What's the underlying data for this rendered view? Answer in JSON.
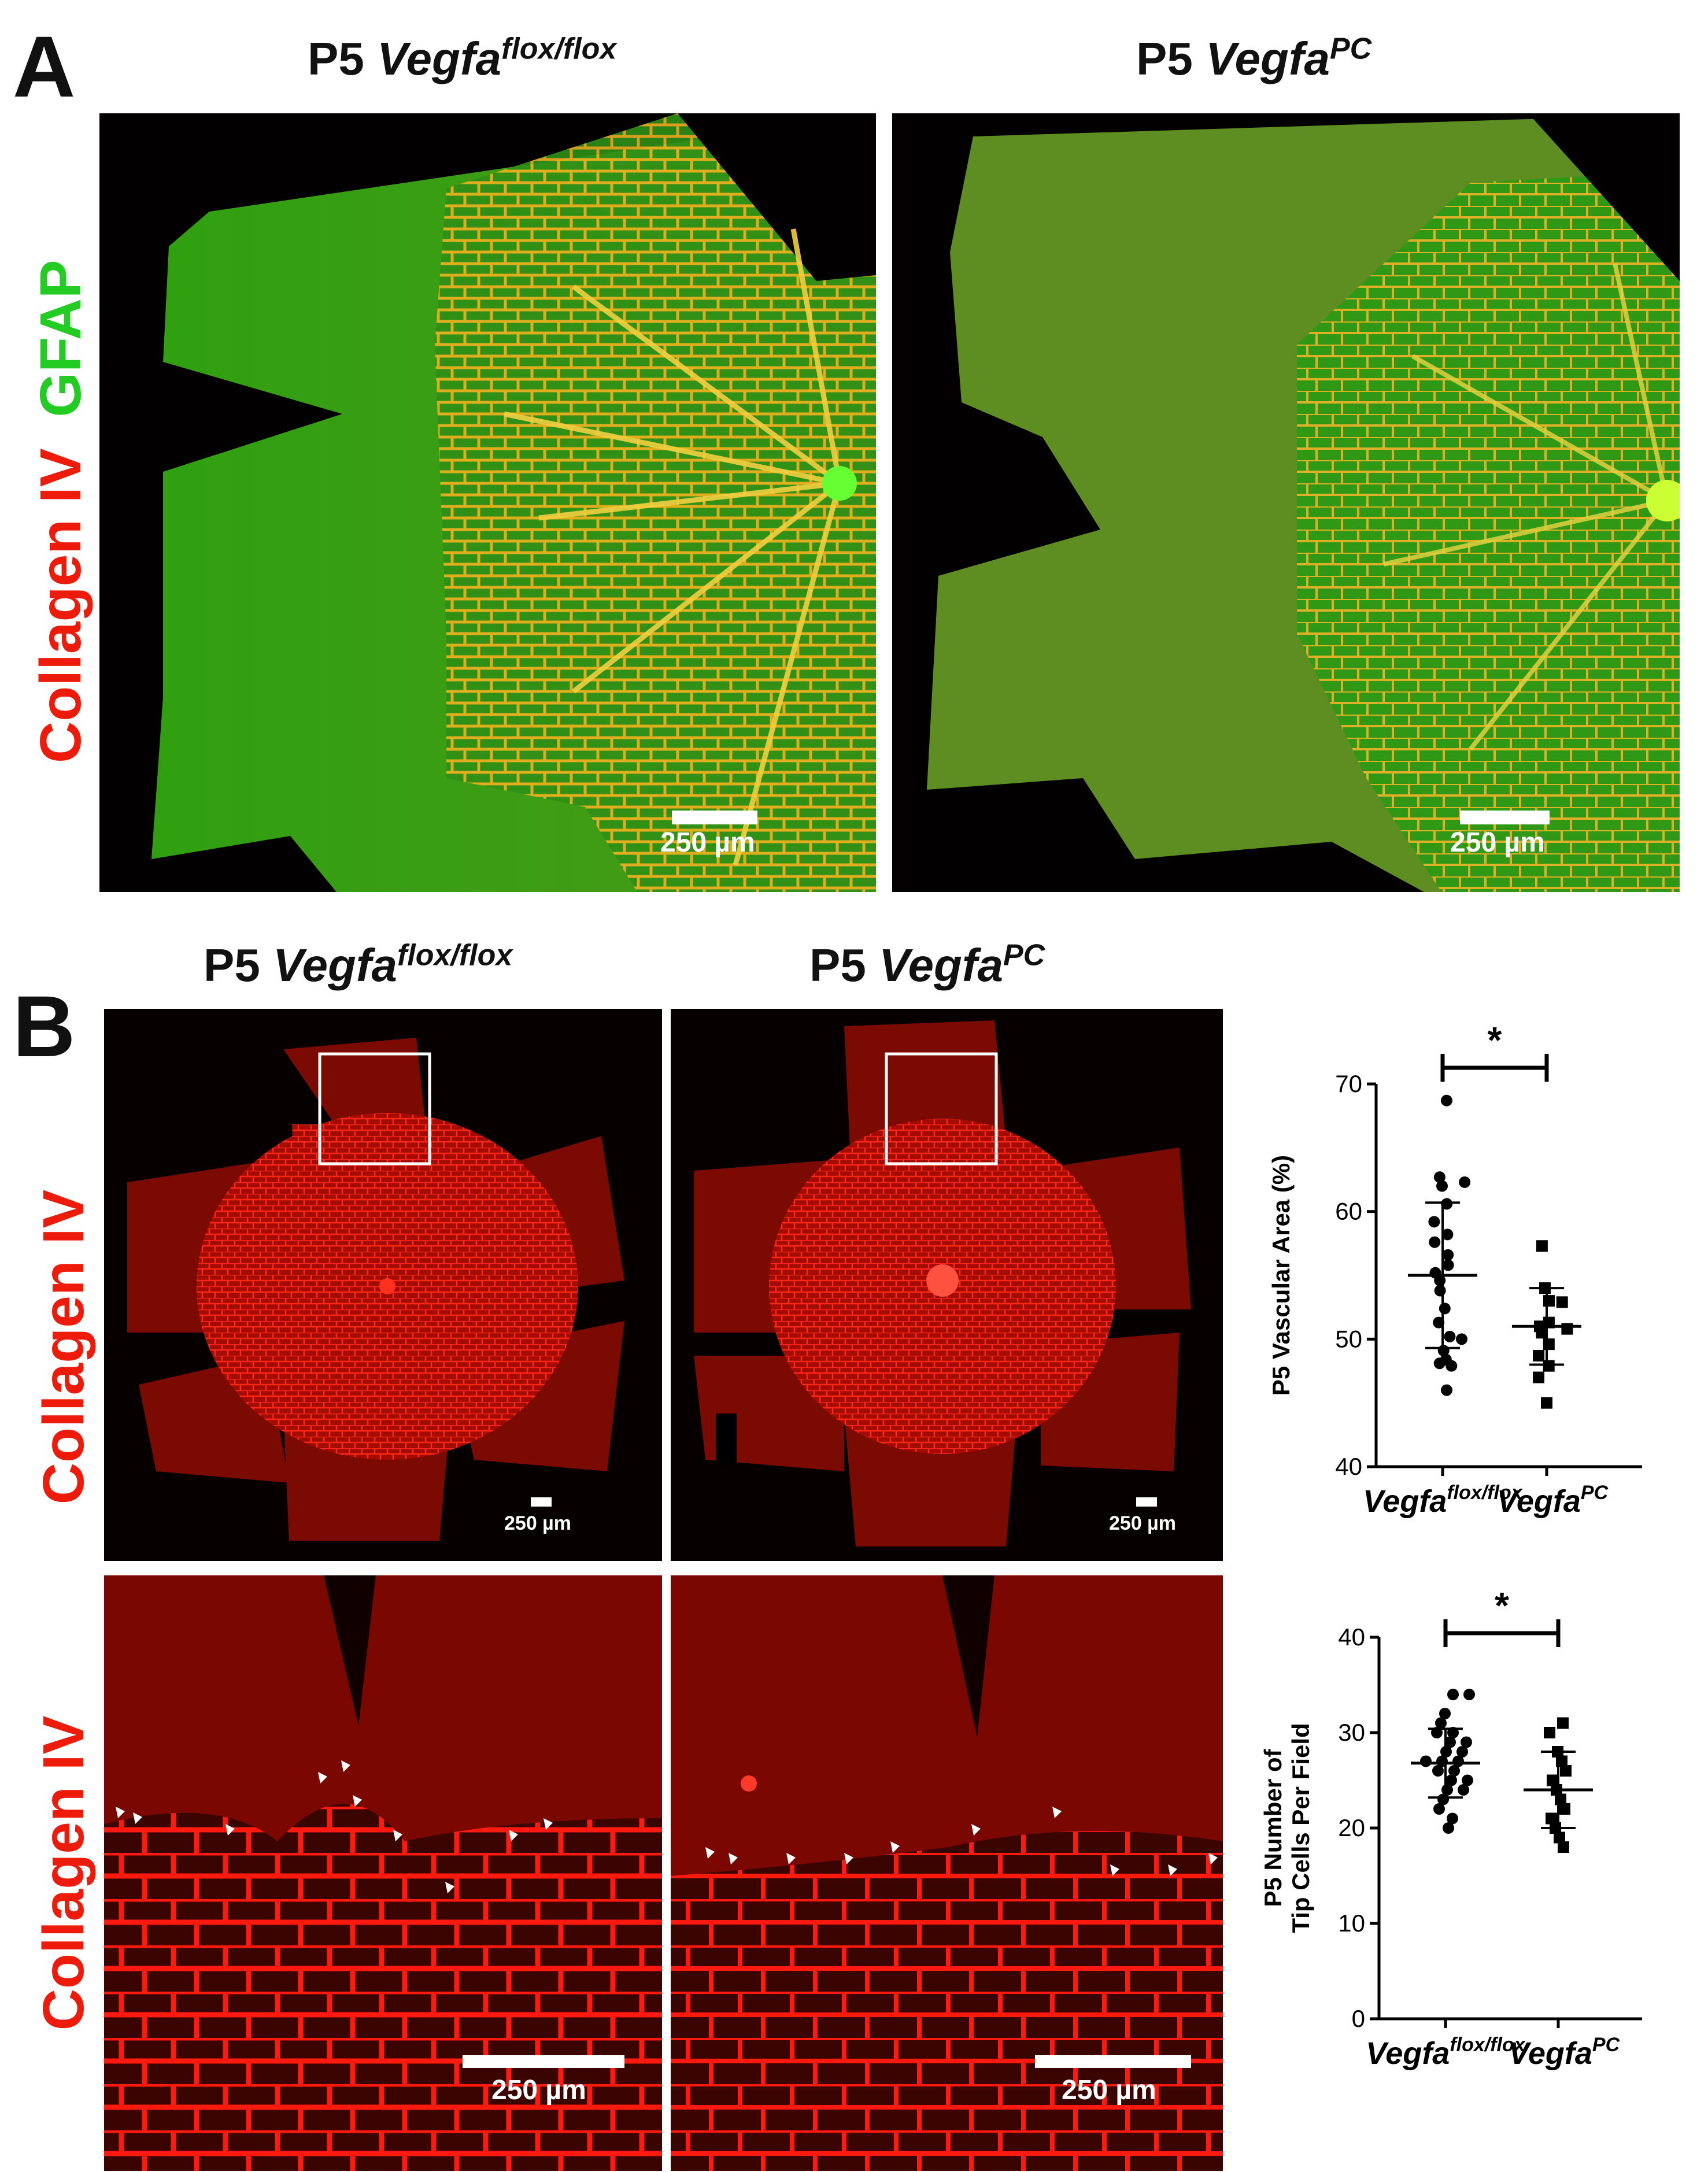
{
  "panel_a": {
    "letter": "A",
    "titles": [
      {
        "prefix": "P5 ",
        "gene": "Vegfa",
        "sup": "flox/flox"
      },
      {
        "prefix": "P5 ",
        "gene": "Vegfa",
        "sup": "PC"
      }
    ],
    "side_label_red": "Collagen IV",
    "side_label_green": "GFAP",
    "scalebar": "250 µm",
    "colors": {
      "green": "#22cc22",
      "red": "#ff2a1a",
      "yellow": "#e8d030"
    }
  },
  "panel_b": {
    "letter": "B",
    "titles": [
      {
        "prefix": "P5 ",
        "gene": "Vegfa",
        "sup": "flox/flox"
      },
      {
        "prefix": "P5 ",
        "gene": "Vegfa",
        "sup": "PC"
      }
    ],
    "side_label": "Collagen IV",
    "scalebar": "250 µm",
    "colors": {
      "red": "#ff1a10",
      "dark_red": "#6a0800"
    }
  },
  "chart_data": [
    {
      "type": "scatter",
      "ylabel": "P5 Vascular Area (%)",
      "ylim": [
        40,
        70
      ],
      "yticks": [
        40,
        50,
        60,
        70
      ],
      "significance": "*",
      "categories": [
        {
          "gene": "Vegfa",
          "sup": "flox/flox"
        },
        {
          "gene": "Vegfa",
          "sup": "PC"
        }
      ],
      "series": [
        {
          "marker": "circle",
          "values": [
            68.7,
            62.7,
            62.3,
            62.0,
            60.6,
            59.2,
            58.2,
            57.6,
            56.6,
            55.8,
            55.2,
            54.6,
            53.8,
            52.4,
            51.3,
            50.2,
            50.0,
            49.1,
            48.4,
            48.1,
            47.9,
            46.0
          ],
          "mean": 55.0,
          "sd_low": 49.3,
          "sd_high": 60.7
        },
        {
          "marker": "square",
          "values": [
            57.3,
            54.0,
            53.0,
            52.9,
            51.3,
            51.0,
            50.8,
            50.5,
            49.6,
            48.7,
            47.9,
            47.0,
            45.0
          ],
          "mean": 51.0,
          "sd_low": 48.0,
          "sd_high": 54.0
        }
      ]
    },
    {
      "type": "scatter",
      "ylabel": "P5 Number of Tip Cells Per Field",
      "ylabel_lines": [
        "P5 Number of",
        "Tip Cells Per Field"
      ],
      "ylim": [
        0,
        40
      ],
      "yticks": [
        0,
        10,
        20,
        30,
        40
      ],
      "significance": "*",
      "categories": [
        {
          "gene": "Vegfa",
          "sup": "flox/flox"
        },
        {
          "gene": "Vegfa",
          "sup": "PC"
        }
      ],
      "series": [
        {
          "marker": "circle",
          "values": [
            34,
            34,
            32,
            31,
            30,
            30,
            29,
            29,
            28,
            28,
            27,
            27,
            27,
            26,
            26,
            25,
            25,
            24,
            24,
            23,
            22,
            21,
            20
          ],
          "mean": 26.8,
          "sd_low": 23.2,
          "sd_high": 30.4
        },
        {
          "marker": "square",
          "values": [
            31,
            30,
            28,
            27,
            26,
            25,
            24,
            23,
            22,
            21,
            20,
            19,
            18
          ],
          "mean": 24.0,
          "sd_low": 20.0,
          "sd_high": 28.0
        }
      ]
    }
  ]
}
